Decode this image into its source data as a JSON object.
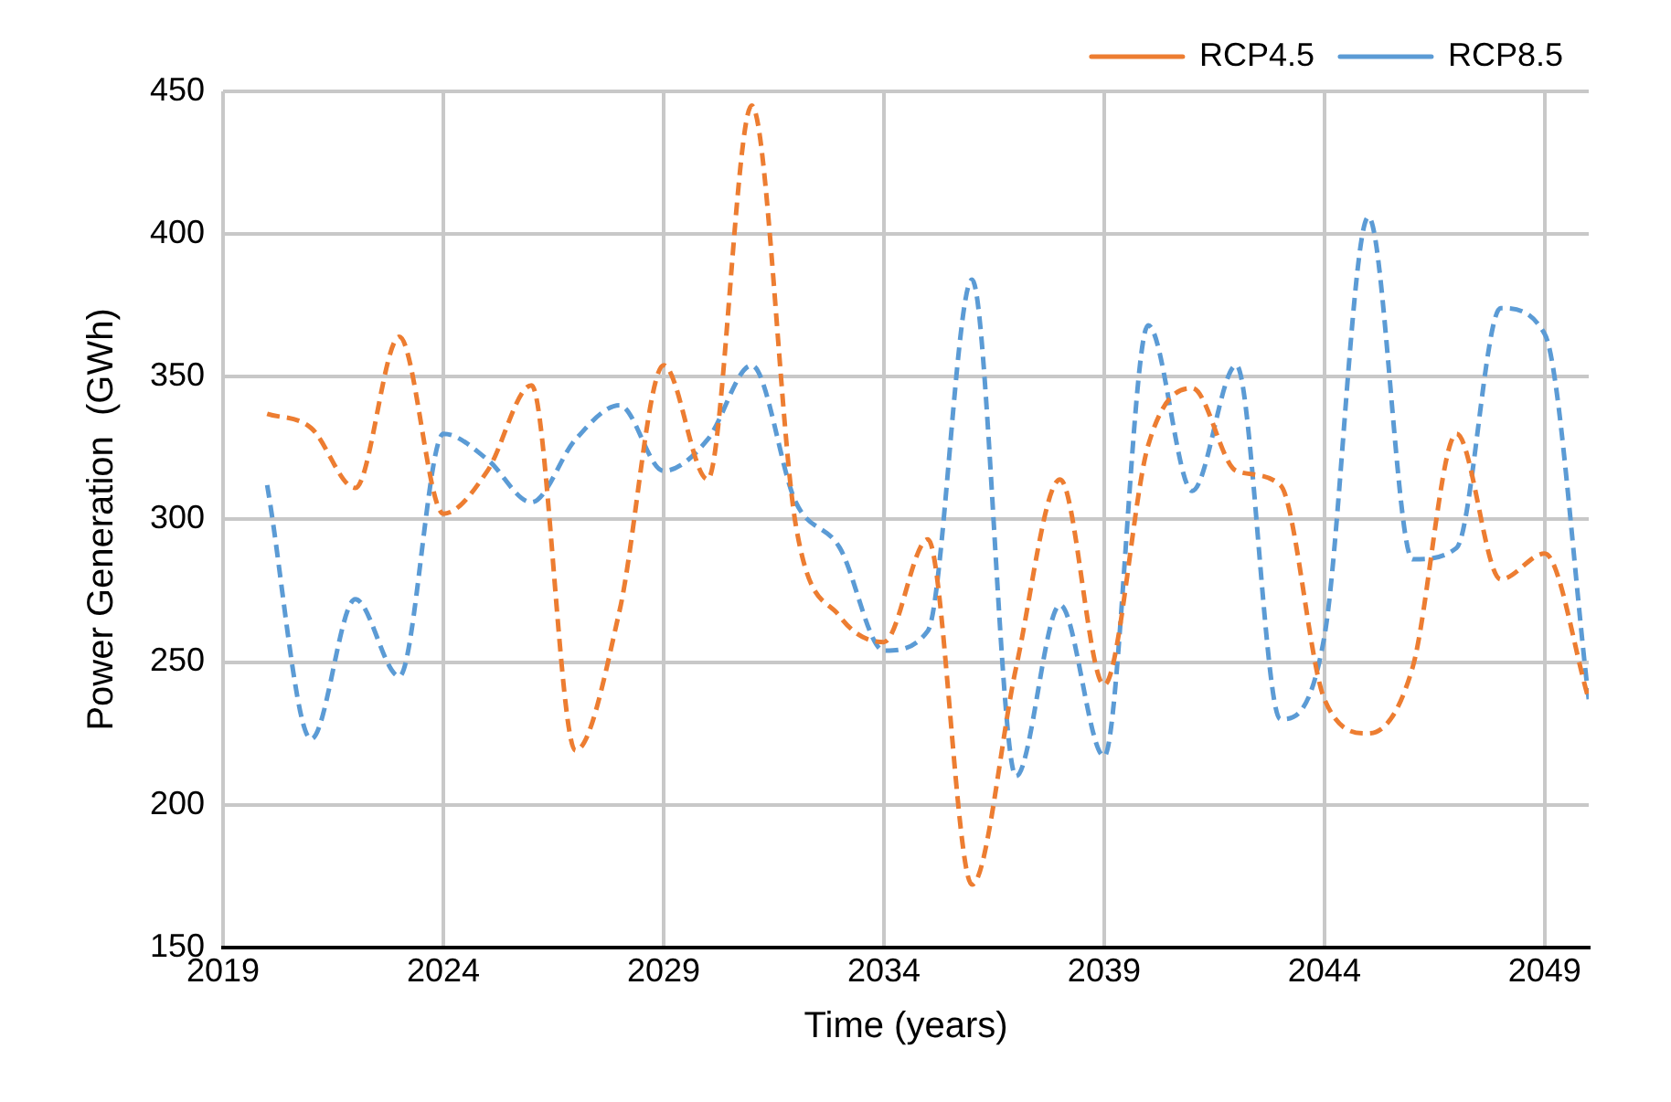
{
  "chart_data": {
    "type": "line",
    "xlabel": "Time (years)",
    "ylabel": "Power Generation  (GWh)",
    "x": [
      2020,
      2021,
      2022,
      2023,
      2024,
      2025,
      2026,
      2027,
      2028,
      2029,
      2030,
      2031,
      2032,
      2033,
      2034,
      2035,
      2036,
      2037,
      2038,
      2039,
      2040,
      2041,
      2042,
      2043,
      2044,
      2045,
      2046,
      2047,
      2048,
      2049,
      2050
    ],
    "series": [
      {
        "name": "RCP4.5",
        "color": "#ed7d31",
        "values": [
          337,
          332,
          311,
          364,
          302,
          317,
          347,
          219,
          268,
          354,
          314,
          445,
          298,
          266,
          257,
          293,
          172,
          248,
          314,
          242,
          326,
          346,
          317,
          312,
          237,
          225,
          248,
          330,
          279,
          288,
          237
        ]
      },
      {
        "name": "RCP8.5",
        "color": "#5b9bd5",
        "values": [
          312,
          223,
          272,
          245,
          330,
          321,
          306,
          328,
          340,
          317,
          328,
          354,
          306,
          290,
          254,
          261,
          384,
          210,
          270,
          217,
          368,
          310,
          354,
          230,
          259,
          406,
          286,
          290,
          374,
          365,
          237
        ]
      }
    ],
    "xlim": [
      2019,
      2050
    ],
    "xticks": [
      2019,
      2024,
      2029,
      2034,
      2039,
      2044,
      2049
    ],
    "ylim": [
      150,
      450
    ],
    "yticks": [
      150,
      200,
      250,
      300,
      350,
      400,
      450
    ],
    "grid": true,
    "legend": "top right",
    "marker": "none",
    "line_style": "dashed"
  }
}
